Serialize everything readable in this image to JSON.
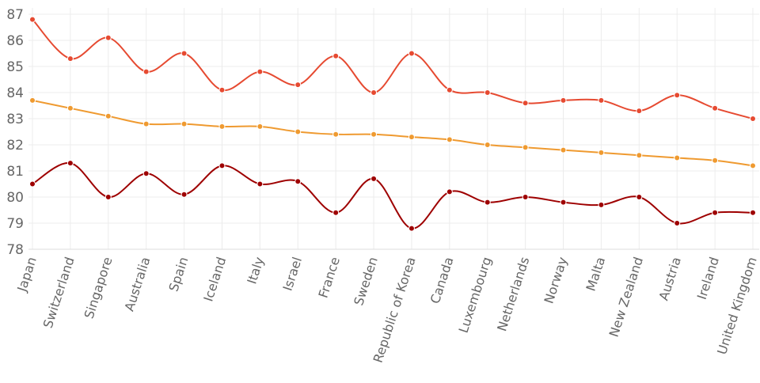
{
  "chart_data": {
    "type": "line",
    "title": "",
    "xlabel": "",
    "ylabel": "",
    "ylim": [
      78,
      87
    ],
    "yticks": [
      78,
      79,
      80,
      81,
      82,
      83,
      84,
      85,
      86,
      87
    ],
    "grid": true,
    "legend": "none",
    "categories": [
      "Japan",
      "Switzerland",
      "Singapore",
      "Australia",
      "Spain",
      "Iceland",
      "Italy",
      "Israel",
      "France",
      "Sweden",
      "Republic of Korea",
      "Canada",
      "Luxembourg",
      "Netherlands",
      "Norway",
      "Malta",
      "New Zealand",
      "Austria",
      "Ireland",
      "United Kingdom"
    ],
    "series": [
      {
        "color": "#e64a31",
        "values": [
          86.8,
          85.3,
          86.1,
          84.8,
          85.5,
          84.1,
          84.8,
          84.3,
          85.4,
          84.0,
          85.5,
          84.1,
          84.0,
          83.6,
          83.7,
          83.7,
          83.3,
          83.9,
          83.4,
          83.0
        ]
      },
      {
        "color": "#ef9a30",
        "values": [
          83.7,
          83.4,
          83.1,
          82.8,
          82.8,
          82.7,
          82.7,
          82.5,
          82.4,
          82.4,
          82.3,
          82.2,
          82.0,
          81.9,
          81.8,
          81.7,
          81.6,
          81.5,
          81.4,
          81.2
        ]
      },
      {
        "color": "#9e0000",
        "values": [
          80.5,
          81.3,
          80.0,
          80.9,
          80.1,
          81.2,
          80.5,
          80.6,
          79.4,
          80.7,
          78.8,
          80.2,
          79.8,
          80.0,
          79.8,
          79.7,
          80.0,
          79.0,
          79.4,
          79.4
        ]
      }
    ]
  }
}
